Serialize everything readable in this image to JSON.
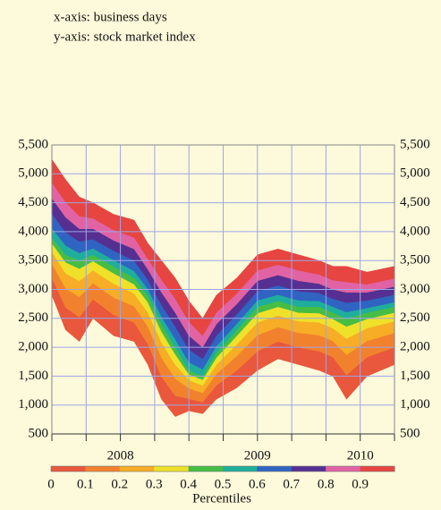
{
  "chart_data": {
    "type": "fan",
    "notes": [
      "x-axis: business days",
      "y-axis: stock market index"
    ],
    "x": [
      2008.0,
      2008.1,
      2008.2,
      2008.3,
      2008.45,
      2008.6,
      2008.7,
      2008.8,
      2008.9,
      2009.0,
      2009.1,
      2009.2,
      2009.35,
      2009.5,
      2009.65,
      2009.8,
      2009.95,
      2010.05,
      2010.15,
      2010.3,
      2010.5
    ],
    "quantiles": [
      [
        2900,
        2300,
        2100,
        2500,
        2200,
        2100,
        1700,
        1100,
        800,
        900,
        850,
        1100,
        1300,
        1600,
        1800,
        1700,
        1600,
        1500,
        1100,
        1500,
        1700
      ],
      [
        3200,
        2690,
        2520,
        2830,
        2560,
        2430,
        2060,
        1490,
        1160,
        1110,
        1050,
        1340,
        1600,
        1930,
        2100,
        2000,
        1930,
        1830,
        1520,
        1830,
        2000
      ],
      [
        3450,
        3020,
        2870,
        3110,
        2860,
        2710,
        2360,
        1820,
        1460,
        1290,
        1210,
        1540,
        1850,
        2210,
        2350,
        2250,
        2210,
        2110,
        1870,
        2110,
        2250
      ],
      [
        3650,
        3280,
        3150,
        3330,
        3100,
        2930,
        2600,
        2080,
        1700,
        1430,
        1340,
        1700,
        2050,
        2430,
        2550,
        2450,
        2430,
        2330,
        2150,
        2330,
        2450
      ],
      [
        3800,
        3470,
        3360,
        3490,
        3280,
        3090,
        2780,
        2270,
        1880,
        1530,
        1440,
        1820,
        2200,
        2590,
        2700,
        2600,
        2590,
        2490,
        2360,
        2490,
        2600
      ],
      [
        3900,
        3600,
        3500,
        3600,
        3400,
        3200,
        2900,
        2400,
        2000,
        1600,
        1500,
        1900,
        2300,
        2700,
        2800,
        2700,
        2700,
        2600,
        2500,
        2600,
        2700
      ],
      [
        4060,
        3760,
        3630,
        3710,
        3510,
        3320,
        3010,
        2530,
        2140,
        1740,
        1620,
        2020,
        2410,
        2810,
        2910,
        2810,
        2800,
        2700,
        2610,
        2680,
        2780
      ],
      [
        4310,
        3990,
        3830,
        3870,
        3670,
        3500,
        3170,
        2730,
        2360,
        1960,
        1800,
        2200,
        2570,
        2970,
        3070,
        2970,
        2940,
        2840,
        2770,
        2810,
        2910
      ],
      [
        4580,
        4250,
        4050,
        4050,
        3850,
        3700,
        3350,
        2950,
        2600,
        2200,
        2000,
        2400,
        2750,
        3150,
        3250,
        3150,
        3100,
        3000,
        2950,
        2950,
        3050
      ],
      [
        4850,
        4510,
        4270,
        4230,
        4030,
        3900,
        3530,
        3170,
        2840,
        2440,
        2200,
        2600,
        2930,
        3330,
        3430,
        3330,
        3260,
        3160,
        3130,
        3090,
        3190
      ],
      [
        5250,
        4900,
        4600,
        4500,
        4300,
        4200,
        3800,
        3500,
        3200,
        2800,
        2500,
        2900,
        3200,
        3600,
        3700,
        3600,
        3500,
        3400,
        3400,
        3300,
        3400
      ]
    ],
    "colors": [
      "#e9573c",
      "#f2812e",
      "#f7ad25",
      "#efe12a",
      "#46bd45",
      "#1fae9c",
      "#2f64c2",
      "#553092",
      "#e163a3",
      "#e64541"
    ],
    "xlim": [
      2008.0,
      2010.5
    ],
    "xticks": [
      2008.0,
      2008.25,
      2008.5,
      2008.75,
      2009.0,
      2009.25,
      2009.5,
      2009.75,
      2010.0,
      2010.25,
      2010.5
    ],
    "xtick_labels": [
      {
        "value": 2008.5,
        "label": "2008"
      },
      {
        "value": 2009.5,
        "label": "2009"
      },
      {
        "value": 2010.25,
        "label": "2010"
      }
    ],
    "ylim": [
      500,
      5500
    ],
    "yticks": [
      {
        "value": 500,
        "label": "500"
      },
      {
        "value": 1000,
        "label": "1,000"
      },
      {
        "value": 1500,
        "label": "1,500"
      },
      {
        "value": 2000,
        "label": "2,000"
      },
      {
        "value": 2500,
        "label": "2,500"
      },
      {
        "value": 3000,
        "label": "3,000"
      },
      {
        "value": 3500,
        "label": "3,500"
      },
      {
        "value": 4000,
        "label": "4,000"
      },
      {
        "value": 4500,
        "label": "4,500"
      },
      {
        "value": 5000,
        "label": "5,000"
      },
      {
        "value": 5500,
        "label": "5,500"
      }
    ],
    "grid": true,
    "colorbar_labels": [
      0,
      0.1,
      0.2,
      0.3,
      0.4,
      0.5,
      0.6,
      0.7,
      0.8,
      0.9
    ],
    "colorbar_title": "Percentiles"
  }
}
